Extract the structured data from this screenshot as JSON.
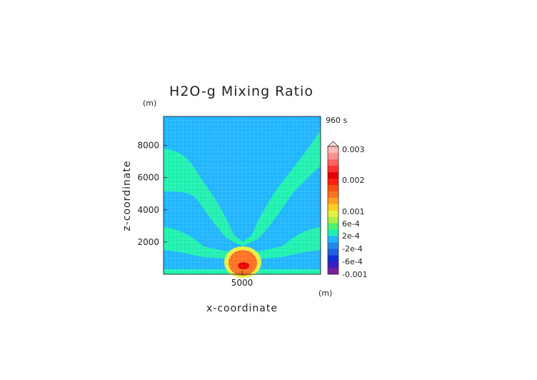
{
  "chart_data": {
    "type": "heatmap",
    "title": "H2O-g Mixing Ratio",
    "xlabel": "x-coordinate",
    "ylabel": "z-coordinate",
    "x_unit": "(m)",
    "y_unit": "(m)",
    "time_label": "960 s",
    "x_ticks": [
      "5000"
    ],
    "y_ticks": [
      "2000",
      "4000",
      "6000",
      "8000"
    ],
    "xlim": [
      0,
      10000
    ],
    "ylim": [
      0,
      9800
    ],
    "colorbar": {
      "labels": [
        "0.003",
        "0.002",
        "0.001",
        "6e-4",
        "2e-4",
        "-2e-4",
        "-6e-4",
        "-0.001"
      ],
      "colors": [
        "#7a1fa2",
        "#3a1fc4",
        "#1030d6",
        "#1f5fe0",
        "#1f88ea",
        "#1fb5ff",
        "#1ff0b0",
        "#4ff070",
        "#a8f048",
        "#e8f040",
        "#ffd020",
        "#ffa020",
        "#ff7020",
        "#ff5010",
        "#ff2010",
        "#e80000",
        "#ff3030",
        "#ff6060",
        "#ff9090",
        "#ffb8b8"
      ]
    },
    "background_color": "#1fb5ff",
    "plume_color": "#1ff0b0"
  }
}
